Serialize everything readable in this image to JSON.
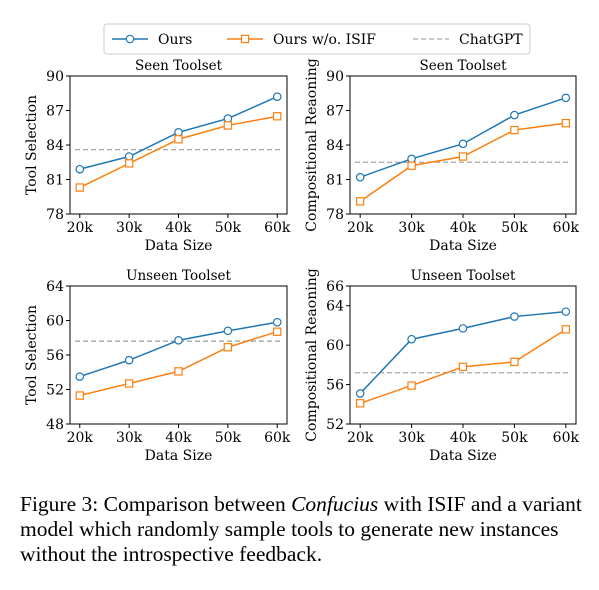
{
  "legend": {
    "items": [
      {
        "label": "Ours",
        "color": "#1f77b4",
        "marker": "circle",
        "dash": false
      },
      {
        "label": "Ours  w/o. ISIF",
        "color": "#ff7f0e",
        "marker": "square",
        "dash": false
      },
      {
        "label": "ChatGPT",
        "color": "#a6a6a6",
        "marker": "none",
        "dash": true
      }
    ]
  },
  "chart_data": [
    {
      "type": "line",
      "title": "Seen Toolset",
      "xlabel": "Data Size",
      "ylabel": "Tool Selection",
      "categories": [
        "20k",
        "30k",
        "40k",
        "50k",
        "60k"
      ],
      "ylim": [
        78,
        90
      ],
      "yticks": [
        78,
        81,
        84,
        87,
        90
      ],
      "series": [
        {
          "name": "Ours",
          "values": [
            81.9,
            83.0,
            85.1,
            86.3,
            88.2
          ]
        },
        {
          "name": "Ours  w/o. ISIF",
          "values": [
            80.3,
            82.4,
            84.5,
            85.7,
            86.5
          ]
        }
      ],
      "baseline": {
        "name": "ChatGPT",
        "value": 83.6
      }
    },
    {
      "type": "line",
      "title": "Seen Toolset",
      "xlabel": "Data Size",
      "ylabel": "Compositional Reaoning",
      "categories": [
        "20k",
        "30k",
        "40k",
        "50k",
        "60k"
      ],
      "ylim": [
        78,
        90
      ],
      "yticks": [
        78,
        81,
        84,
        87,
        90
      ],
      "series": [
        {
          "name": "Ours",
          "values": [
            81.2,
            82.8,
            84.1,
            86.6,
            88.1
          ]
        },
        {
          "name": "Ours  w/o. ISIF",
          "values": [
            79.1,
            82.2,
            83.0,
            85.3,
            85.9
          ]
        }
      ],
      "baseline": {
        "name": "ChatGPT",
        "value": 82.5
      }
    },
    {
      "type": "line",
      "title": "Unseen Toolset",
      "xlabel": "Data Size",
      "ylabel": "Tool Selection",
      "categories": [
        "20k",
        "30k",
        "40k",
        "50k",
        "60k"
      ],
      "ylim": [
        48,
        64
      ],
      "yticks": [
        48,
        52,
        56,
        60,
        64
      ],
      "series": [
        {
          "name": "Ours",
          "values": [
            53.5,
            55.4,
            57.7,
            58.8,
            59.8
          ]
        },
        {
          "name": "Ours  w/o. ISIF",
          "values": [
            51.3,
            52.7,
            54.1,
            56.9,
            58.7
          ]
        }
      ],
      "baseline": {
        "name": "ChatGPT",
        "value": 57.6
      }
    },
    {
      "type": "line",
      "title": "Unseen Toolset",
      "xlabel": "Data Size",
      "ylabel": "Compositional Reaoning",
      "categories": [
        "20k",
        "30k",
        "40k",
        "50k",
        "60k"
      ],
      "ylim": [
        52,
        66
      ],
      "yticks": [
        52,
        56,
        60,
        64,
        66
      ],
      "series": [
        {
          "name": "Ours",
          "values": [
            55.1,
            60.6,
            61.7,
            62.9,
            63.4
          ]
        },
        {
          "name": "Ours  w/o. ISIF",
          "values": [
            54.1,
            55.9,
            57.8,
            58.3,
            61.6
          ]
        }
      ],
      "baseline": {
        "name": "ChatGPT",
        "value": 57.2
      }
    }
  ],
  "caption": {
    "prefix": "Figure 3: Comparison between ",
    "italic": "Confucius",
    "suffix": " with ISIF and a variant model which randomly sample tools to generate new instances without the introspective feedback."
  }
}
